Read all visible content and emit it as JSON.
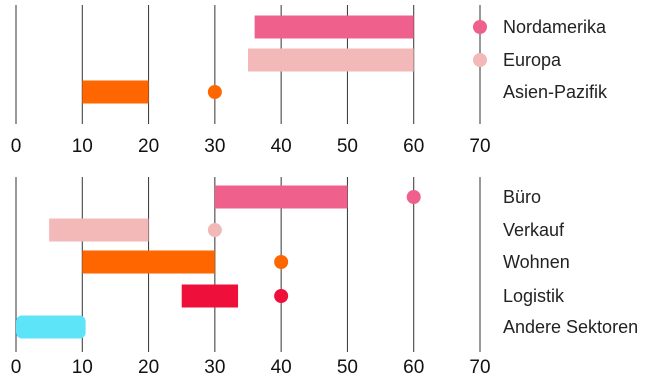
{
  "chart_data": [
    {
      "type": "range-bar",
      "xlim": [
        0,
        70
      ],
      "ticks": [
        0,
        10,
        20,
        30,
        40,
        50,
        60,
        70
      ],
      "grid": "vertical",
      "legend_position": "right",
      "series": [
        {
          "name": "Nordamerika",
          "color": "#f0608d",
          "range": [
            36,
            60
          ],
          "point": null
        },
        {
          "name": "Europa",
          "color": "#f2b9b8",
          "range": [
            35,
            60
          ],
          "point": null
        },
        {
          "name": "Asien-Pazifik",
          "color": "#ff6600",
          "range": [
            10,
            20
          ],
          "point": 30
        }
      ]
    },
    {
      "type": "range-bar",
      "xlim": [
        0,
        70
      ],
      "ticks": [
        0,
        10,
        20,
        30,
        40,
        50,
        60,
        70
      ],
      "grid": "vertical",
      "legend_position": "right",
      "series": [
        {
          "name": "Büro",
          "color": "#f0608d",
          "range": [
            30,
            50
          ],
          "point": 60
        },
        {
          "name": "Verkauf",
          "color": "#f2b9b8",
          "range": [
            5,
            20
          ],
          "point": 30
        },
        {
          "name": "Wohnen",
          "color": "#ff6600",
          "range": [
            10,
            30
          ],
          "point": 40
        },
        {
          "name": "Logistik",
          "color": "#ee0f3a",
          "range": [
            25,
            33.5
          ],
          "point": 40
        },
        {
          "name": "Andere Sektoren",
          "color": "#5de4f8",
          "range": [
            0,
            10.5
          ],
          "point": null
        }
      ]
    }
  ]
}
